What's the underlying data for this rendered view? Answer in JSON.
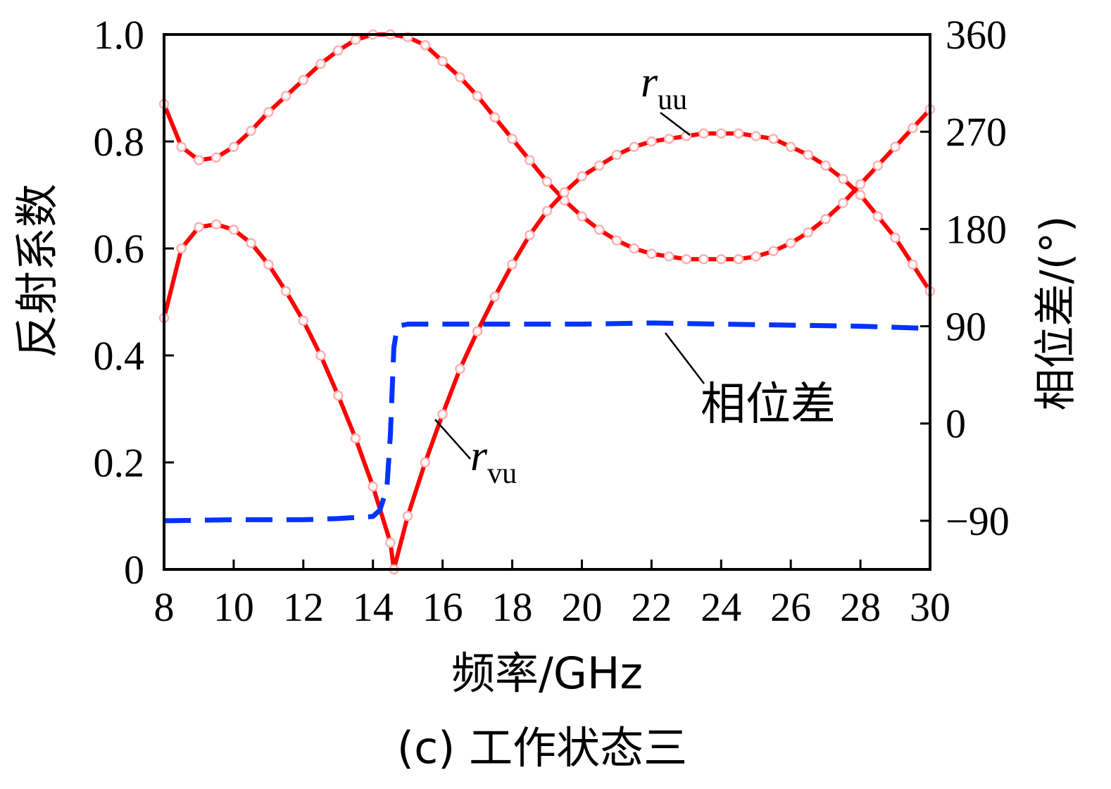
{
  "chart_data": {
    "type": "line",
    "xlabel": "频率/GHz",
    "ylabel_left": "反射系数",
    "ylabel_right": "相位差/(°)",
    "caption": "(c) 工作状态三",
    "x_ticks": [
      "8",
      "10",
      "12",
      "14",
      "16",
      "18",
      "20",
      "22",
      "24",
      "26",
      "28",
      "30"
    ],
    "y_left_ticks": [
      "0",
      "0.2",
      "0.4",
      "0.6",
      "0.8",
      "1.0"
    ],
    "y_right_ticks": [
      "−90",
      "0",
      "90",
      "180",
      "270",
      "360"
    ],
    "xlim": [
      8,
      30
    ],
    "ylim_left": [
      0,
      1.0
    ],
    "ylim_right": [
      -135,
      360
    ],
    "annotations": {
      "ruu_main": "r",
      "ruu_sub": "uu",
      "rvu_main": "r",
      "rvu_sub": "vu",
      "phase": "相位差"
    },
    "series": [
      {
        "key": "ruu",
        "axis": "left",
        "color": "#ff0000",
        "x": [
          8,
          8.5,
          9,
          9.5,
          10,
          10.5,
          11,
          11.5,
          12,
          12.5,
          13,
          13.5,
          14,
          14.5,
          15,
          15.5,
          16,
          16.5,
          17,
          17.5,
          18,
          18.5,
          19,
          19.5,
          20,
          20.5,
          21,
          21.5,
          22,
          22.5,
          23,
          23.5,
          24,
          24.5,
          25,
          25.5,
          26,
          26.5,
          27,
          27.5,
          28,
          28.5,
          29,
          29.5,
          30
        ],
        "y": [
          0.87,
          0.79,
          0.765,
          0.77,
          0.79,
          0.82,
          0.855,
          0.885,
          0.915,
          0.945,
          0.97,
          0.99,
          1.0,
          1.0,
          0.995,
          0.98,
          0.95,
          0.92,
          0.885,
          0.845,
          0.805,
          0.765,
          0.725,
          0.69,
          0.66,
          0.635,
          0.615,
          0.6,
          0.59,
          0.585,
          0.58,
          0.58,
          0.58,
          0.58,
          0.585,
          0.595,
          0.61,
          0.63,
          0.655,
          0.685,
          0.72,
          0.755,
          0.79,
          0.825,
          0.86
        ]
      },
      {
        "key": "rvu",
        "axis": "left",
        "color": "#ff0000",
        "x": [
          8,
          8.5,
          9,
          9.5,
          10,
          10.5,
          11,
          11.5,
          12,
          12.5,
          13,
          13.5,
          14,
          14.5,
          14.6,
          15,
          15.5,
          16,
          16.5,
          17,
          17.5,
          18,
          18.5,
          19,
          19.5,
          20,
          20.5,
          21,
          21.5,
          22,
          22.5,
          23,
          23.5,
          24,
          24.5,
          25,
          25.5,
          26,
          26.5,
          27,
          27.5,
          28,
          28.5,
          29,
          29.5,
          30
        ],
        "y": [
          0.47,
          0.6,
          0.64,
          0.645,
          0.635,
          0.61,
          0.57,
          0.52,
          0.465,
          0.4,
          0.325,
          0.245,
          0.155,
          0.05,
          0.0,
          0.1,
          0.2,
          0.29,
          0.375,
          0.445,
          0.51,
          0.57,
          0.625,
          0.67,
          0.705,
          0.735,
          0.755,
          0.775,
          0.79,
          0.8,
          0.805,
          0.81,
          0.815,
          0.815,
          0.815,
          0.81,
          0.805,
          0.79,
          0.775,
          0.755,
          0.73,
          0.7,
          0.66,
          0.62,
          0.57,
          0.52
        ]
      },
      {
        "key": "phase",
        "axis": "right",
        "color": "#0033ff",
        "x": [
          8,
          10,
          12,
          13,
          14,
          14.2,
          14.4,
          14.5,
          14.6,
          14.7,
          15,
          16,
          18,
          20,
          22,
          24,
          26,
          28,
          30
        ],
        "y": [
          -90,
          -89,
          -89,
          -88,
          -86,
          -80,
          -60,
          -10,
          70,
          90,
          92,
          92,
          92,
          92,
          93,
          92,
          91,
          90,
          88
        ]
      }
    ]
  }
}
